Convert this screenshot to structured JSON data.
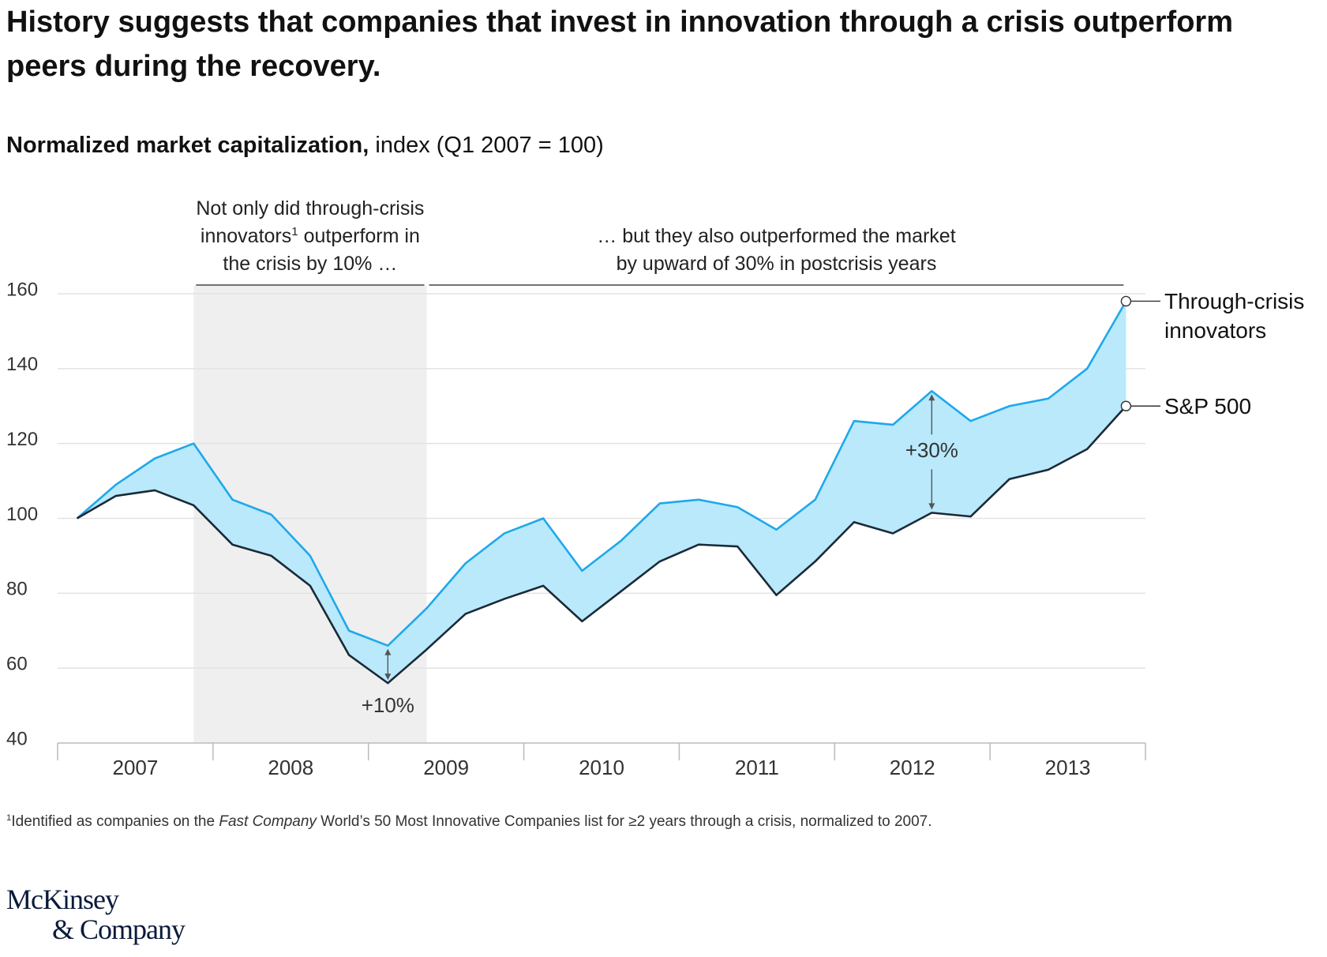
{
  "title": "History suggests that companies that invest in innovation through a crisis outperform peers during the recovery.",
  "chart_data": {
    "type": "line",
    "subtitle": [
      {
        "bold": "Normalized market capitalization,"
      },
      " index (Q1 2007 = 100)"
    ],
    "x": [
      2007.125,
      2007.375,
      2007.625,
      2007.875,
      2008.125,
      2008.375,
      2008.625,
      2008.875,
      2009.125,
      2009.375,
      2009.625,
      2009.875,
      2010.125,
      2010.375,
      2010.625,
      2010.875,
      2011.125,
      2011.375,
      2011.625,
      2011.875,
      2012.125,
      2012.375,
      2012.625,
      2012.875,
      2013.125,
      2013.375,
      2013.625,
      2013.875
    ],
    "xlim": [
      2007,
      2014
    ],
    "xticks": [
      {
        "value": 2007.5,
        "label": "2007"
      },
      {
        "value": 2008.5,
        "label": "2008"
      },
      {
        "value": 2009.5,
        "label": "2009"
      },
      {
        "value": 2010.5,
        "label": "2010"
      },
      {
        "value": 2011.5,
        "label": "2011"
      },
      {
        "value": 2012.5,
        "label": "2012"
      },
      {
        "value": 2013.5,
        "label": "2013"
      }
    ],
    "xtick_marks": [
      2007,
      2008,
      2009,
      2010,
      2011,
      2012,
      2013,
      2014
    ],
    "ylim": [
      40,
      160
    ],
    "yticks": [
      40,
      60,
      80,
      100,
      120,
      140,
      160
    ],
    "grid": true,
    "fill_between": "#b9e9fb",
    "series": [
      {
        "name": "Through-crisis innovators",
        "color": "#1ea8ec",
        "values": [
          100,
          109,
          116,
          120,
          105,
          101,
          90,
          70,
          66,
          76,
          88,
          96,
          100,
          86,
          94,
          104,
          105,
          103,
          97,
          105,
          126,
          125,
          134,
          126,
          130,
          132,
          140,
          158
        ]
      },
      {
        "name": "S&P 500",
        "color": "#1b2a38",
        "values": [
          100,
          106,
          107.5,
          103.5,
          93,
          90,
          82,
          63.5,
          56,
          65,
          74.5,
          78.5,
          82,
          72.5,
          80.5,
          88.5,
          93,
          92.5,
          79.5,
          88.5,
          99,
          96,
          101.5,
          100.5,
          110.5,
          113,
          118.5,
          130
        ]
      }
    ],
    "annotations": [
      {
        "lines": [
          [
            "Not only did through-crisis"
          ],
          [
            "innovators",
            {
              "sup": "1"
            },
            " outperform in"
          ],
          [
            "the crisis by 10% …"
          ]
        ],
        "from": 2007.875,
        "to": 2009.375,
        "shaded": true
      },
      {
        "lines": [
          [
            "… but they also outperformed the market"
          ],
          [
            "by upward of 30% in postcrisis years"
          ]
        ],
        "from": 2009.375,
        "to": 2013.875,
        "shaded": false
      }
    ],
    "differences": [
      {
        "label": "+10%",
        "index": 8,
        "label_at": "below"
      },
      {
        "label": "+30%",
        "index": 22,
        "label_at": "between"
      }
    ],
    "footnote": [
      {
        "sup": "1"
      },
      "Identified as companies on the ",
      {
        "italic": "Fast Company"
      },
      " World’s 50 Most Innovative Companies list for ≥2 years through a crisis, normalized to 2007."
    ]
  },
  "logo": [
    "McKinsey",
    "& Company"
  ]
}
